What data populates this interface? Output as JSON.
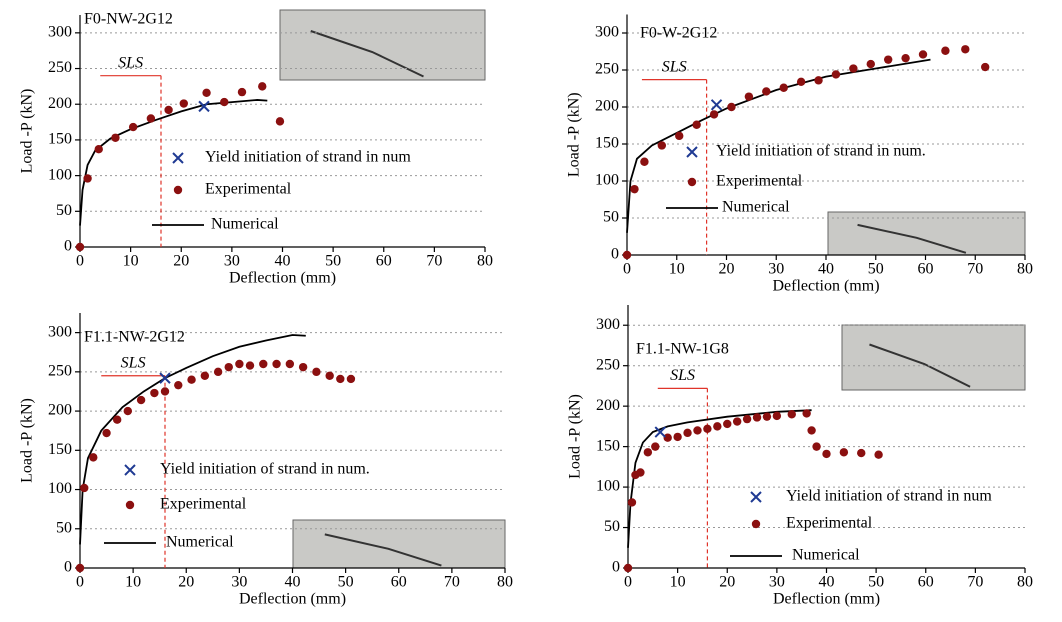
{
  "chart_data": [
    {
      "type": "line",
      "title": "F0-NW-2G12",
      "xlabel": "Deflection (mm)",
      "ylabel": "Load -P (kN)",
      "xlim": [
        0,
        80
      ],
      "ylim": [
        0,
        325
      ],
      "xticks": [
        0,
        10,
        20,
        30,
        40,
        50,
        60,
        70,
        80
      ],
      "yticks": [
        0,
        50,
        100,
        150,
        200,
        250,
        300
      ],
      "grid": true,
      "sls": {
        "label": "SLS",
        "x": 16,
        "y": 240,
        "x_start": 4,
        "color": "#e0342a"
      },
      "series": [
        {
          "name": "Yield initiation of strand in num",
          "kind": "cross",
          "color": "#1f3a93",
          "x": [
            24.5
          ],
          "values": [
            197
          ]
        },
        {
          "name": "Experimental",
          "kind": "dot",
          "color": "#8b1010",
          "x": [
            0,
            1.5,
            3.7,
            7,
            10.5,
            14,
            17.5,
            20.5,
            25,
            28.5,
            32,
            36,
            39.5
          ],
          "values": [
            0,
            96,
            137,
            153,
            168,
            180,
            192,
            201,
            216,
            203,
            217,
            225,
            176
          ]
        },
        {
          "name": "Numerical",
          "kind": "line",
          "color": "#000000",
          "x": [
            0,
            0.5,
            1.5,
            3,
            6,
            10,
            15,
            20,
            25,
            30,
            35,
            37
          ],
          "values": [
            30,
            80,
            115,
            135,
            152,
            165,
            178,
            190,
            200,
            203,
            206,
            205
          ]
        }
      ]
    },
    {
      "type": "line",
      "title": "F0-W-2G12",
      "xlabel": "Deflection (mm)",
      "ylabel": "Load -P (kN)",
      "xlim": [
        0,
        80
      ],
      "ylim": [
        0,
        325
      ],
      "xticks": [
        0,
        10,
        20,
        30,
        40,
        50,
        60,
        70,
        80
      ],
      "yticks": [
        0,
        50,
        100,
        150,
        200,
        250,
        300
      ],
      "grid": true,
      "sls": {
        "label": "SLS",
        "x": 16,
        "y": 237,
        "x_start": 3,
        "color": "#e0342a"
      },
      "series": [
        {
          "name": "Yield initiation of strand in num.",
          "kind": "cross",
          "color": "#1f3a93",
          "x": [
            18
          ],
          "values": [
            203
          ]
        },
        {
          "name": "Experimental",
          "kind": "dot",
          "color": "#8b1010",
          "x": [
            0,
            1.5,
            3.5,
            7,
            10.5,
            14,
            17.5,
            21,
            24.5,
            28,
            31.5,
            35,
            38.5,
            42,
            45.5,
            49,
            52.5,
            56,
            59.5,
            64,
            68,
            72
          ],
          "values": [
            0,
            89,
            126,
            148,
            161,
            176,
            190,
            200,
            214,
            221,
            226,
            234,
            236,
            244,
            252,
            258,
            264,
            266,
            271,
            276,
            278,
            254
          ]
        },
        {
          "name": "Numerical",
          "kind": "line",
          "color": "#000000",
          "x": [
            0,
            0.7,
            2,
            5,
            10,
            15,
            20,
            30,
            40,
            50,
            61
          ],
          "values": [
            30,
            100,
            130,
            148,
            165,
            182,
            198,
            223,
            241,
            252,
            264
          ]
        }
      ]
    },
    {
      "type": "line",
      "title": "F1.1-NW-2G12",
      "xlabel": "Deflection (mm)",
      "ylabel": "Load -P (kN)",
      "xlim": [
        0,
        80
      ],
      "ylim": [
        0,
        325
      ],
      "xticks": [
        0,
        10,
        20,
        30,
        40,
        50,
        60,
        70,
        80
      ],
      "yticks": [
        0,
        50,
        100,
        150,
        200,
        250,
        300
      ],
      "grid": true,
      "sls": {
        "label": "SLS",
        "x": 16,
        "y": 245,
        "x_start": 4,
        "color": "#e0342a"
      },
      "series": [
        {
          "name": "Yield initiation of strand in num.",
          "kind": "cross",
          "color": "#1f3a93",
          "x": [
            16
          ],
          "values": [
            242
          ]
        },
        {
          "name": "Experimental",
          "kind": "dot",
          "color": "#8b1010",
          "x": [
            0,
            0.8,
            2.5,
            5,
            7,
            9,
            11.5,
            14,
            16,
            18.5,
            21,
            23.5,
            26,
            28,
            30,
            32,
            34.5,
            37,
            39.5,
            42,
            44.5,
            47,
            49,
            51
          ],
          "values": [
            0,
            102,
            141,
            172,
            189,
            200,
            214,
            223,
            225,
            233,
            240,
            245,
            250,
            256,
            260,
            258,
            260,
            260,
            260,
            256,
            250,
            245,
            241,
            241
          ]
        },
        {
          "name": "Numerical",
          "kind": "line",
          "color": "#000000",
          "x": [
            0,
            0.5,
            1.5,
            4,
            8,
            12,
            16,
            20,
            25,
            30,
            35,
            40,
            42.5
          ],
          "values": [
            30,
            100,
            140,
            175,
            205,
            225,
            242,
            255,
            270,
            282,
            290,
            297,
            296
          ]
        }
      ]
    },
    {
      "type": "line",
      "title": "F1.1-NW-1G8",
      "xlabel": "Deflection (mm)",
      "ylabel": "Load -P (kN)",
      "xlim": [
        0,
        80
      ],
      "ylim": [
        0,
        325
      ],
      "xticks": [
        0,
        10,
        20,
        30,
        40,
        50,
        60,
        70,
        80
      ],
      "yticks": [
        0,
        50,
        100,
        150,
        200,
        250,
        300
      ],
      "grid": true,
      "sls": {
        "label": "SLS",
        "x": 16,
        "y": 222,
        "x_start": 6,
        "color": "#e0342a"
      },
      "series": [
        {
          "name": "Yield initiation of strand in num",
          "kind": "cross",
          "color": "#1f3a93",
          "x": [
            6.5
          ],
          "values": [
            168
          ]
        },
        {
          "name": "Experimental",
          "kind": "dot",
          "color": "#8b1010",
          "x": [
            0,
            0.8,
            1.5,
            2.5,
            4,
            5.5,
            8,
            10,
            12,
            14,
            16,
            18,
            20,
            22,
            24,
            26,
            28,
            30,
            33,
            36,
            37,
            38,
            40,
            43.5,
            47,
            50.5
          ],
          "values": [
            0,
            81,
            115,
            118,
            143,
            150,
            161,
            162,
            167,
            170,
            172,
            175,
            178,
            181,
            184,
            186,
            187,
            188,
            190,
            191,
            170,
            150,
            141,
            143,
            142,
            140
          ]
        },
        {
          "name": "Numerical",
          "kind": "line",
          "color": "#000000",
          "x": [
            0,
            0.5,
            1.5,
            3,
            5,
            8,
            12,
            20,
            30,
            37
          ],
          "values": [
            25,
            80,
            130,
            155,
            168,
            175,
            180,
            187,
            193,
            195
          ]
        }
      ]
    }
  ]
}
